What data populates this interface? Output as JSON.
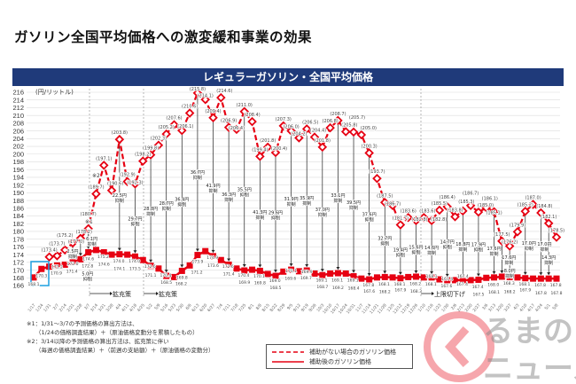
{
  "title": "ガソリン全国平均価格への激変緩和事業の効果",
  "logo_text": "くるまのニュース",
  "notes": [
    "※1：1/31～3/7の予測価格の算出方法は、",
    "（1/24の価格調査結果）＋（原油価格変動分を累積したもの）",
    "※2：3/14以降の予測価格の算出方法は、拡充策に伴い",
    "（毎週の価格調査結果）＋（前週の支給額）＋（原油価格の変動分）"
  ],
  "annotations": {
    "expand1": "拡充策",
    "expand2": "拡充策",
    "cap_down": "上限切下げ",
    "note1": "※1",
    "note2": "※2",
    "subsidy_suffix": "抑制"
  },
  "chart_data": {
    "type": "line",
    "title": "レギュラーガソリン・全国平均価格",
    "ylabel": "(円/リットル)",
    "xlabel": "",
    "ylim": [
      166,
      216
    ],
    "yticks": [
      166,
      168,
      170,
      172,
      174,
      176,
      178,
      180,
      182,
      184,
      186,
      188,
      190,
      192,
      194,
      196,
      198,
      200,
      202,
      204,
      206,
      208,
      210,
      212,
      214,
      216
    ],
    "grid": true,
    "legend_position": "bottom-right",
    "x": [
      "1/17",
      "1/24",
      "1/31",
      "2/7",
      "2/14",
      "2/21",
      "2/28",
      "3/7",
      "3/14",
      "3/21",
      "3/28",
      "4/4",
      "4/11",
      "4/18",
      "4/25",
      "5/2",
      "5/9",
      "5/16",
      "5/23",
      "5/30",
      "6/6",
      "6/13",
      "6/20",
      "6/27",
      "7/4",
      "7/11",
      "7/18",
      "7/25",
      "8/1",
      "8/8",
      "8/15",
      "8/22",
      "8/29",
      "9/5",
      "9/12",
      "9/19",
      "9/26",
      "10/3",
      "10/10",
      "10/17",
      "10/24",
      "10/31",
      "11/7",
      "11/14",
      "11/21",
      "11/28",
      "12/5",
      "12/12",
      "12/19",
      "12/26",
      "1/10",
      "1/16",
      "1/23",
      "1/30",
      "2/6",
      "2/13",
      "2/20",
      "2/27",
      "3/6",
      "3/13",
      "3/20",
      "3/27",
      "4/3",
      "4/10",
      "4/17",
      "4/24",
      "5/1",
      "5/8"
    ],
    "series": [
      {
        "name": "補助がない場合のガソリン価格",
        "style": "dashed",
        "color": "#e60012",
        "values": [
          null,
          null,
          173.4,
          173.7,
          175.2,
          177.0,
          178.2,
          180.7,
          189.7,
          197.1,
          190.6,
          203.8,
          192.9,
          192.3,
          198.2,
          199.8,
          202.3,
          205.2,
          207.6,
          206.1,
          210.6,
          215.8,
          214.1,
          209.4,
          214.6,
          206.9,
          206.4,
          211.0,
          208.4,
          199.4,
          201.8,
          200.4,
          207.3,
          206.0,
          204.2,
          206.5,
          204.4,
          201.8,
          206.8,
          208.7,
          205.8,
          205.7,
          205.0,
          200.3,
          193.7,
          187.5,
          186.7,
          181.7,
          183.6,
          182.8,
          183.6,
          182.8,
          185.5,
          186.4,
          183.8,
          185.3,
          186.7,
          185.0,
          186.1,
          185.1,
          177.5,
          176.2,
          179.9,
          185.2,
          187.0,
          184.8,
          182.1,
          178.5
        ]
      },
      {
        "name": "補助後のガソリン価格",
        "style": "solid",
        "color": "#e60012",
        "values": [
          168.1,
          170.3,
          170.9,
          171.2,
          171.4,
          172.0,
          172.8,
          174.6,
          175.2,
          174.6,
          174.0,
          174.1,
          174.0,
          173.5,
          172.6,
          171.1,
          170.4,
          168.5,
          168.2,
          169.8,
          171.2,
          173.9,
          174.9,
          173.6,
          172.6,
          171.4,
          170.4,
          169.9,
          170.1,
          169.8,
          169.0,
          168.5,
          169.6,
          170.1,
          169.7,
          169.9,
          169.1,
          168.7,
          169.1,
          169.2,
          169.1,
          168.4,
          167.8,
          167.6,
          168.1,
          168.2,
          168.1,
          167.9,
          168.2,
          168.3,
          168.1,
          168.1,
          167.6,
          167.4,
          167.4,
          167.4,
          167.4,
          167.5,
          168.0,
          168.1,
          168.3,
          168.2,
          168.1,
          167.9,
          167.8,
          167.8,
          167.8,
          167.8
        ]
      }
    ],
    "subsidies": [
      {
        "i": 5,
        "amount": "2.5円"
      },
      {
        "i": 6,
        "amount": "5.0円"
      },
      {
        "i": 7,
        "amount": "6.1円"
      },
      {
        "i": 11,
        "amount": "22.5円"
      },
      {
        "i": 13,
        "amount": "29.7円"
      },
      {
        "i": 15,
        "amount": "28.8円"
      },
      {
        "i": 17,
        "amount": "28.7円"
      },
      {
        "i": 19,
        "amount": "36.4円"
      },
      {
        "i": 21,
        "amount": "36.7円"
      },
      {
        "i": 23,
        "amount": "41.9円"
      },
      {
        "i": 25,
        "amount": "36.3円"
      },
      {
        "i": 27,
        "amount": "35.5円"
      },
      {
        "i": 29,
        "amount": "41.3円"
      },
      {
        "i": 31,
        "amount": "29.6円"
      },
      {
        "i": 33,
        "amount": "31.9円"
      },
      {
        "i": 35,
        "amount": "35.9円"
      },
      {
        "i": 37,
        "amount": "37.0円"
      },
      {
        "i": 39,
        "amount": "33.1円"
      },
      {
        "i": 41,
        "amount": "39.5円"
      },
      {
        "i": 43,
        "amount": "37.6円"
      },
      {
        "i": 45,
        "amount": "32.7円"
      },
      {
        "i": 47,
        "amount": "19.4円"
      },
      {
        "i": 49,
        "amount": "15.6円"
      },
      {
        "i": 51,
        "amount": "14.6円"
      },
      {
        "i": 53,
        "amount": "14.7円"
      },
      {
        "i": 55,
        "amount": "18.8円"
      },
      {
        "i": 57,
        "amount": "17.9円"
      },
      {
        "i": 59,
        "amount": "17.6円"
      },
      {
        "i": 60,
        "amount": "17.6円"
      },
      {
        "i": 61,
        "amount": "8.0円"
      },
      {
        "i": 63,
        "amount": "17.0円"
      },
      {
        "i": 65,
        "amount": "17.0円"
      },
      {
        "i": 66,
        "amount": "14.3円"
      }
    ]
  }
}
